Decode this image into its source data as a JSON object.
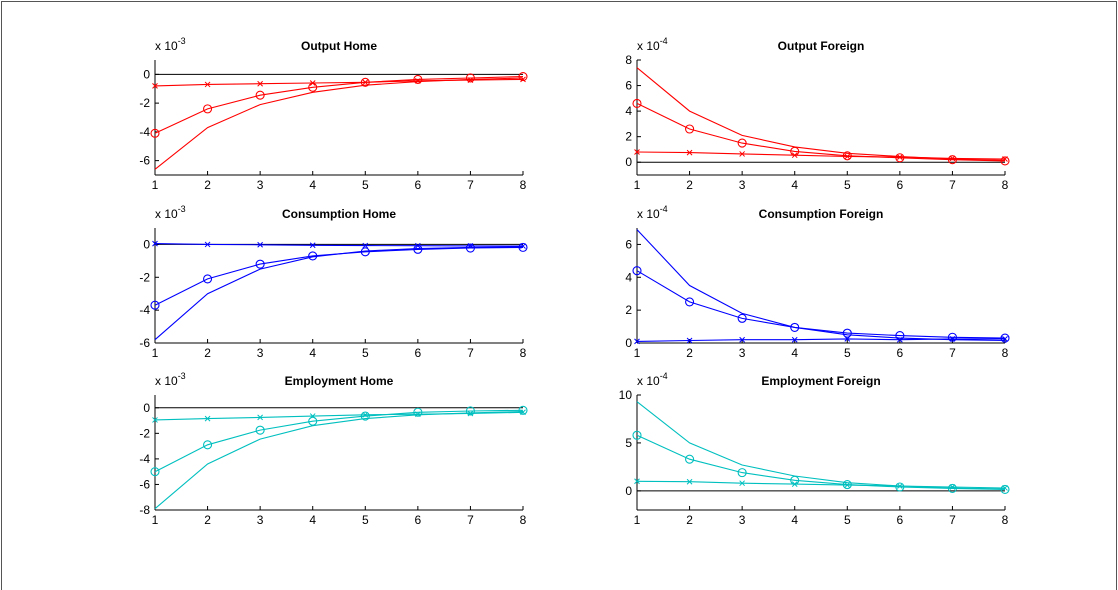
{
  "chart_data": [
    {
      "type": "line",
      "title": "Output Home",
      "color": "#ff0000",
      "exponent_base": "x 10",
      "exponent_power": "-3",
      "x": [
        1,
        2,
        3,
        4,
        5,
        6,
        7,
        8
      ],
      "xticks": [
        "1",
        "2",
        "3",
        "4",
        "5",
        "6",
        "7",
        "8"
      ],
      "xlim": [
        1,
        8
      ],
      "ylim": [
        -7,
        1
      ],
      "yticks": [
        -6,
        -4,
        -2,
        0
      ],
      "ytick_labels": [
        "-6",
        "-4",
        "-2",
        "0"
      ],
      "zero_line": true,
      "series": [
        {
          "marker": "x",
          "values": [
            -0.8,
            -0.7,
            -0.65,
            -0.6,
            -0.55,
            -0.45,
            -0.4,
            -0.35
          ]
        },
        {
          "marker": "o",
          "values": [
            -4.1,
            -2.4,
            -1.45,
            -0.9,
            -0.55,
            -0.35,
            -0.25,
            -0.15
          ]
        },
        {
          "marker": "none",
          "values": [
            -6.6,
            -3.7,
            -2.1,
            -1.25,
            -0.75,
            -0.5,
            -0.35,
            -0.25
          ]
        }
      ]
    },
    {
      "type": "line",
      "title": "Output Foreign",
      "color": "#ff0000",
      "exponent_base": "x 10",
      "exponent_power": "-4",
      "x": [
        1,
        2,
        3,
        4,
        5,
        6,
        7,
        8
      ],
      "xticks": [
        "1",
        "2",
        "3",
        "4",
        "5",
        "6",
        "7",
        "8"
      ],
      "xlim": [
        1,
        8
      ],
      "ylim": [
        -1,
        8
      ],
      "yticks": [
        0,
        2,
        4,
        6,
        8
      ],
      "ytick_labels": [
        "0",
        "2",
        "4",
        "6",
        "8"
      ],
      "zero_line": true,
      "series": [
        {
          "marker": "x",
          "values": [
            0.8,
            0.75,
            0.65,
            0.55,
            0.45,
            0.4,
            0.3,
            0.25
          ]
        },
        {
          "marker": "o",
          "values": [
            4.6,
            2.6,
            1.5,
            0.85,
            0.5,
            0.35,
            0.2,
            0.1
          ]
        },
        {
          "marker": "none",
          "values": [
            7.4,
            4.0,
            2.1,
            1.2,
            0.7,
            0.45,
            0.25,
            0.15
          ]
        }
      ]
    },
    {
      "type": "line",
      "title": "Consumption Home",
      "color": "#0000ff",
      "exponent_base": "x 10",
      "exponent_power": "-3",
      "x": [
        1,
        2,
        3,
        4,
        5,
        6,
        7,
        8
      ],
      "xticks": [
        "1",
        "2",
        "3",
        "4",
        "5",
        "6",
        "7",
        "8"
      ],
      "xlim": [
        1,
        8
      ],
      "ylim": [
        -6,
        1
      ],
      "yticks": [
        -6,
        -4,
        -2,
        0
      ],
      "ytick_labels": [
        "-6",
        "-4",
        "-2",
        "0"
      ],
      "zero_line": true,
      "series": [
        {
          "marker": "x",
          "values": [
            0.05,
            0.0,
            -0.02,
            -0.05,
            -0.07,
            -0.08,
            -0.09,
            -0.1
          ]
        },
        {
          "marker": "o",
          "values": [
            -3.7,
            -2.1,
            -1.2,
            -0.7,
            -0.45,
            -0.3,
            -0.22,
            -0.18
          ]
        },
        {
          "marker": "none",
          "values": [
            -5.8,
            -3.0,
            -1.5,
            -0.75,
            -0.4,
            -0.25,
            -0.18,
            -0.15
          ]
        }
      ]
    },
    {
      "type": "line",
      "title": "Consumption Foreign",
      "color": "#0000ff",
      "exponent_base": "x 10",
      "exponent_power": "-4",
      "x": [
        1,
        2,
        3,
        4,
        5,
        6,
        7,
        8
      ],
      "xticks": [
        "1",
        "2",
        "3",
        "4",
        "5",
        "6",
        "7",
        "8"
      ],
      "xlim": [
        1,
        8
      ],
      "ylim": [
        0,
        7
      ],
      "yticks": [
        0,
        2,
        4,
        6
      ],
      "ytick_labels": [
        "0",
        "2",
        "4",
        "6"
      ],
      "zero_line": false,
      "series": [
        {
          "marker": "x",
          "values": [
            0.1,
            0.15,
            0.2,
            0.2,
            0.25,
            0.2,
            0.25,
            0.25
          ]
        },
        {
          "marker": "o",
          "values": [
            4.4,
            2.5,
            1.5,
            0.95,
            0.6,
            0.45,
            0.35,
            0.3
          ]
        },
        {
          "marker": "none",
          "values": [
            6.9,
            3.5,
            1.8,
            0.95,
            0.5,
            0.3,
            0.2,
            0.15
          ]
        }
      ]
    },
    {
      "type": "line",
      "title": "Employment Home",
      "color": "#00bfbf",
      "exponent_base": "x 10",
      "exponent_power": "-3",
      "x": [
        1,
        2,
        3,
        4,
        5,
        6,
        7,
        8
      ],
      "xticks": [
        "1",
        "2",
        "3",
        "4",
        "5",
        "6",
        "7",
        "8"
      ],
      "xlim": [
        1,
        8
      ],
      "ylim": [
        -8,
        1
      ],
      "yticks": [
        -8,
        -6,
        -4,
        -2,
        0
      ],
      "ytick_labels": [
        "-8",
        "-6",
        "-4",
        "-2",
        "0"
      ],
      "zero_line": true,
      "series": [
        {
          "marker": "x",
          "values": [
            -0.95,
            -0.85,
            -0.75,
            -0.65,
            -0.55,
            -0.5,
            -0.45,
            -0.35
          ]
        },
        {
          "marker": "o",
          "values": [
            -5.0,
            -2.9,
            -1.75,
            -1.05,
            -0.65,
            -0.35,
            -0.25,
            -0.2
          ]
        },
        {
          "marker": "none",
          "values": [
            -7.9,
            -4.4,
            -2.45,
            -1.4,
            -0.85,
            -0.55,
            -0.4,
            -0.3
          ]
        }
      ]
    },
    {
      "type": "line",
      "title": "Employment Foreign",
      "color": "#00bfbf",
      "exponent_base": "x 10",
      "exponent_power": "-4",
      "x": [
        1,
        2,
        3,
        4,
        5,
        6,
        7,
        8
      ],
      "xticks": [
        "1",
        "2",
        "3",
        "4",
        "5",
        "6",
        "7",
        "8"
      ],
      "xlim": [
        1,
        8
      ],
      "ylim": [
        -2,
        10
      ],
      "yticks": [
        0,
        5,
        10
      ],
      "ytick_labels": [
        "0",
        "5",
        "10"
      ],
      "zero_line": true,
      "series": [
        {
          "marker": "x",
          "values": [
            1.0,
            0.95,
            0.8,
            0.7,
            0.6,
            0.5,
            0.4,
            0.3
          ]
        },
        {
          "marker": "o",
          "values": [
            5.8,
            3.3,
            1.9,
            1.1,
            0.65,
            0.4,
            0.25,
            0.15
          ]
        },
        {
          "marker": "none",
          "values": [
            9.3,
            5.0,
            2.7,
            1.55,
            0.85,
            0.5,
            0.3,
            0.2
          ]
        }
      ]
    }
  ]
}
